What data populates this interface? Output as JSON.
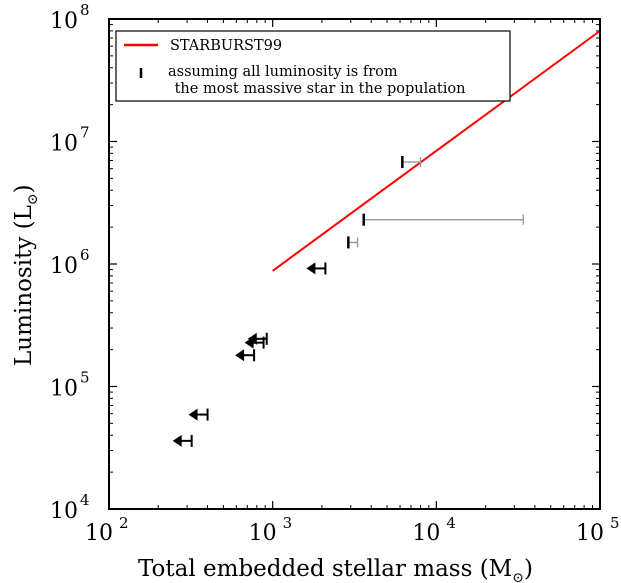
{
  "chart_data": {
    "type": "scatter",
    "title": "",
    "xlabel": "Total embedded stellar mass (M",
    "xlabel_sub": "⊙",
    "xlabel_close": ")",
    "ylabel": "Luminosity (L",
    "ylabel_sub": "⊙",
    "ylabel_close": ")",
    "xscale": "log",
    "yscale": "log",
    "xlim": [
      100,
      100000
    ],
    "ylim": [
      10000,
      100000000
    ],
    "x_ticks": [
      {
        "base": "10",
        "exp": "2"
      },
      {
        "base": "10",
        "exp": "3"
      },
      {
        "base": "10",
        "exp": "4"
      },
      {
        "base": "10",
        "exp": "5"
      }
    ],
    "y_ticks": [
      {
        "base": "10",
        "exp": "4"
      },
      {
        "base": "10",
        "exp": "5"
      },
      {
        "base": "10",
        "exp": "6"
      },
      {
        "base": "10",
        "exp": "7"
      },
      {
        "base": "10",
        "exp": "8"
      }
    ],
    "grid": false,
    "legend_position": "top-left",
    "legend": [
      {
        "label": "STARBURST99",
        "color": "#ff0000",
        "marker": "line"
      },
      {
        "label_line1": "assuming all luminosity is from",
        "label_line2": " the most massive star in the population",
        "color": "#000000",
        "marker": "vbar"
      }
    ],
    "series": [
      {
        "name": "STARBURST99",
        "type": "line",
        "color": "#ff0000",
        "x": [
          1000,
          100000
        ],
        "y": [
          880000,
          80000000
        ]
      },
      {
        "type": "upper-limit",
        "color": "#000000",
        "points": [
          {
            "x": 320,
            "y": 36000
          },
          {
            "x": 400,
            "y": 59000
          },
          {
            "x": 770,
            "y": 180000
          },
          {
            "x": 880,
            "y": 228000
          },
          {
            "x": 920,
            "y": 245000
          },
          {
            "x": 2100,
            "y": 920000
          }
        ]
      },
      {
        "type": "range",
        "color": "#000000",
        "range_color": "#999999",
        "points": [
          {
            "x": 6200,
            "x_high": 8000,
            "y": 6800000
          },
          {
            "x": 3600,
            "x_high": 34000,
            "y": 2300000
          },
          {
            "x": 2900,
            "x_high": 3300,
            "y": 1500000
          }
        ]
      }
    ]
  }
}
